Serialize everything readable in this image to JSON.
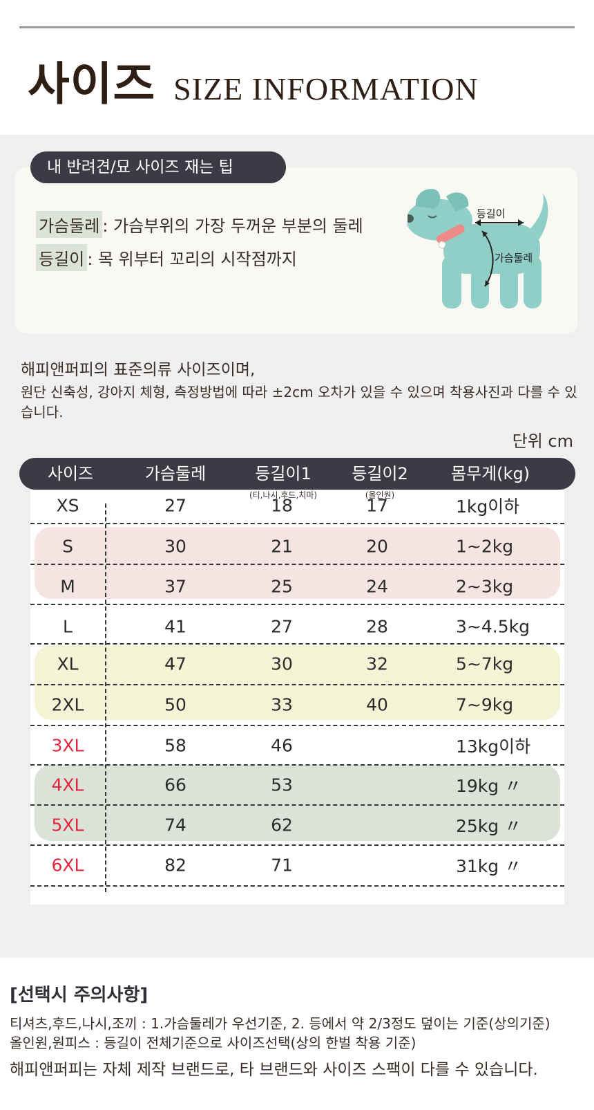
{
  "header": {
    "title_ko": "사이즈",
    "title_en": "SIZE  INFORMATION"
  },
  "tip": {
    "pill_label": "내 반려견/묘 사이즈 재는 팁",
    "rows": [
      {
        "term": "가슴둘레",
        "desc": " : 가슴부위의 가장 두꺼운 부분의 둘레"
      },
      {
        "term": "등길이",
        "desc": " : 목 위부터 꼬리의 시작점까지"
      }
    ],
    "dog_labels": {
      "back": "등길이",
      "chest": "가슴둘레"
    }
  },
  "notes": {
    "line1": "해피앤퍼피의 표준의류 사이즈이며,",
    "line2": "원단 신축성, 강아지 체형, 측정방법에 따라 ±2cm 오차가 있을 수 있으며 착용사진과 다를 수 있습니다.",
    "unit": "단위 cm"
  },
  "table": {
    "headers": [
      "사이즈",
      "가슴둘레",
      "등길이1",
      "등길이2",
      "몸무게(kg)"
    ],
    "subnotes": {
      "back1": "(티,나시,후드,치마)",
      "back2": "(올인원)"
    },
    "rows": [
      {
        "size": "XS",
        "chest": "27",
        "back1": "18",
        "back2": "17",
        "weight": "1kg이하",
        "red": false
      },
      {
        "size": "S",
        "chest": "30",
        "back1": "21",
        "back2": "20",
        "weight": "1~2kg",
        "red": false
      },
      {
        "size": "M",
        "chest": "37",
        "back1": "25",
        "back2": "24",
        "weight": "2~3kg",
        "red": false
      },
      {
        "size": "L",
        "chest": "41",
        "back1": "27",
        "back2": "28",
        "weight": "3~4.5kg",
        "red": false
      },
      {
        "size": "XL",
        "chest": "47",
        "back1": "30",
        "back2": "32",
        "weight": "5~7kg",
        "red": false
      },
      {
        "size": "2XL",
        "chest": "50",
        "back1": "33",
        "back2": "40",
        "weight": "7~9kg",
        "red": false
      },
      {
        "size": "3XL",
        "chest": "58",
        "back1": "46",
        "back2": "",
        "weight": "13kg이하",
        "red": true
      },
      {
        "size": "4XL",
        "chest": "66",
        "back1": "53",
        "back2": "",
        "weight": "19kg 〃",
        "red": true
      },
      {
        "size": "5XL",
        "chest": "74",
        "back1": "62",
        "back2": "",
        "weight": "25kg 〃",
        "red": true
      },
      {
        "size": "6XL",
        "chest": "82",
        "back1": "71",
        "back2": "",
        "weight": "31kg 〃",
        "red": true
      }
    ],
    "band_colors": {
      "pink": "#f6e4e2",
      "yellow": "#f4f3d6",
      "green": "#dbe3d8"
    }
  },
  "caution": {
    "title": "[선택시 주의사항]",
    "line1": "티셔츠,후드,나시,조끼 : 1.가슴둘레가 우선기준, 2. 등에서 약 2/3정도 덮이는 기준(상의기준)",
    "line2": "올인원,원피스 : 등길이 전체기준으로 사이즈선택(상의 한벌 착용 기준)"
  },
  "footer": "해피앤퍼피는 자체 제작 브랜드로, 타 브랜드와 사이즈 스팩이 다를 수 있습니다.",
  "colors": {
    "accent_dark": "#3b3a45",
    "red": "#e3263f",
    "dog": "#8fcfc7"
  }
}
